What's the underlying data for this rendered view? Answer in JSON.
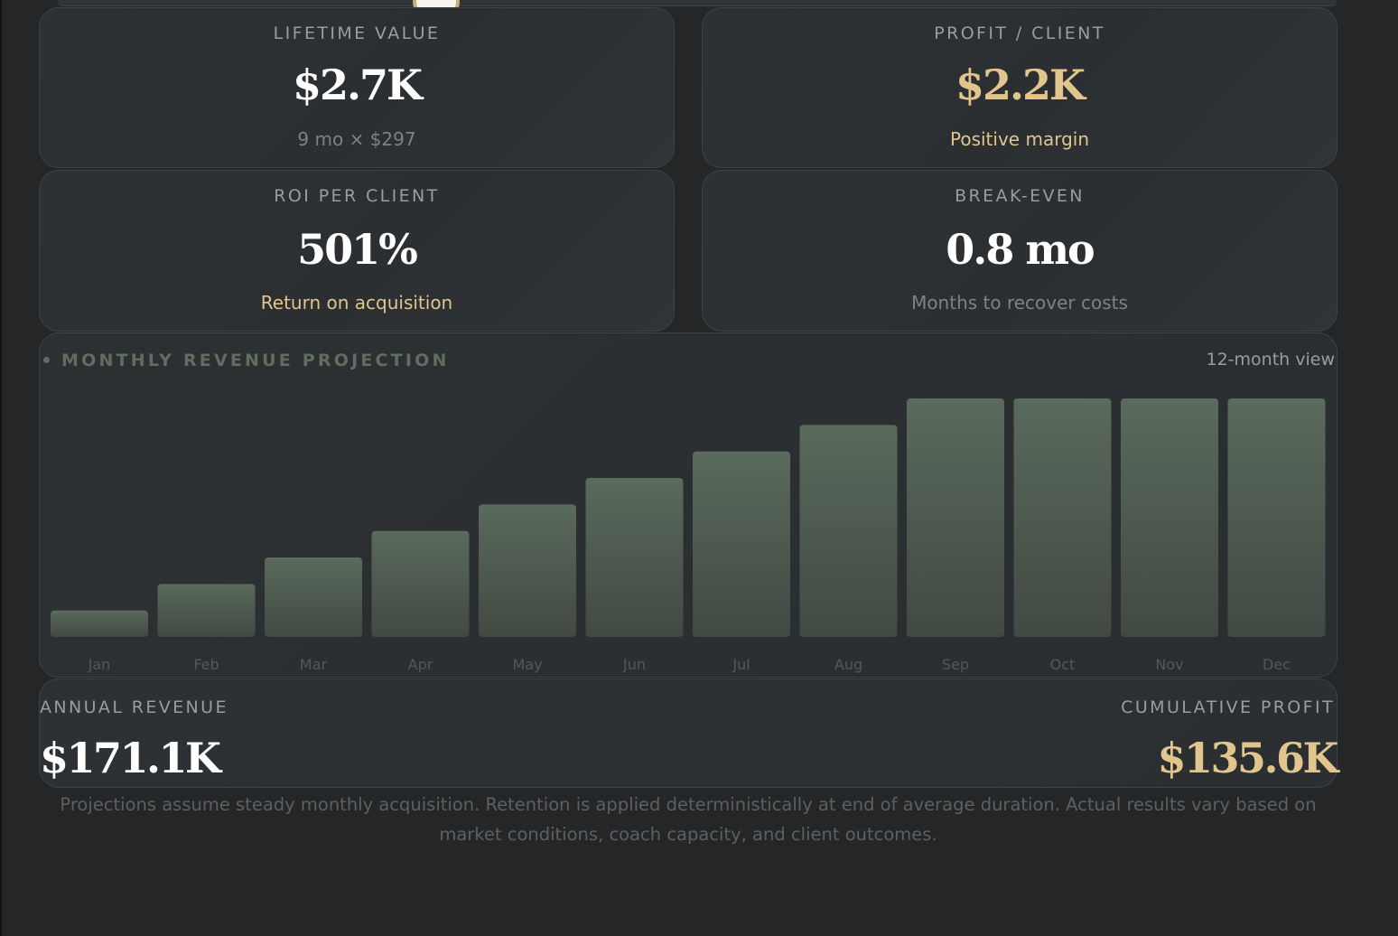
{
  "metrics": {
    "lifetime_value": {
      "label": "LIFETIME VALUE",
      "value": "$2.7K",
      "sub": "9 mo × $297"
    },
    "profit_client": {
      "label": "PROFIT / CLIENT",
      "value": "$2.2K",
      "sub": "Positive margin"
    },
    "roi": {
      "label": "ROI PER CLIENT",
      "value": "501%",
      "sub": "Return on acquisition"
    },
    "break_even": {
      "label": "BREAK-EVEN",
      "value": "0.8 mo",
      "sub": "Months to recover costs"
    }
  },
  "chart": {
    "title": "MONTHLY REVENUE PROJECTION",
    "view_label": "12-month view"
  },
  "chart_data": {
    "type": "bar",
    "title": "MONTHLY REVENUE PROJECTION",
    "categories": [
      "Jan",
      "Feb",
      "Mar",
      "Apr",
      "May",
      "Jun",
      "Jul",
      "Aug",
      "Sep",
      "Oct",
      "Nov",
      "Dec"
    ],
    "values": [
      1,
      2,
      3,
      4,
      5,
      6,
      7,
      8,
      9,
      9,
      9,
      9
    ],
    "xlabel": "",
    "ylabel": "",
    "ylim": [
      0,
      9
    ],
    "grid": false,
    "bar_color": "#56665a"
  },
  "summary": {
    "annual_label": "ANNUAL REVENUE",
    "annual_value": "$171.1K",
    "cumulative_label": "CUMULATIVE PROFIT",
    "cumulative_value": "$135.6K"
  },
  "disclaimer": "Projections assume steady monthly acquisition. Retention is applied deterministically at end of average duration. Actual results vary based on market conditions, coach capacity, and client outcomes.",
  "colors": {
    "background": "#242628",
    "card": "#2c3033",
    "accent_gold": "#e2c58c",
    "bar": "#56665a",
    "muted_text": "#9a9d9c"
  }
}
